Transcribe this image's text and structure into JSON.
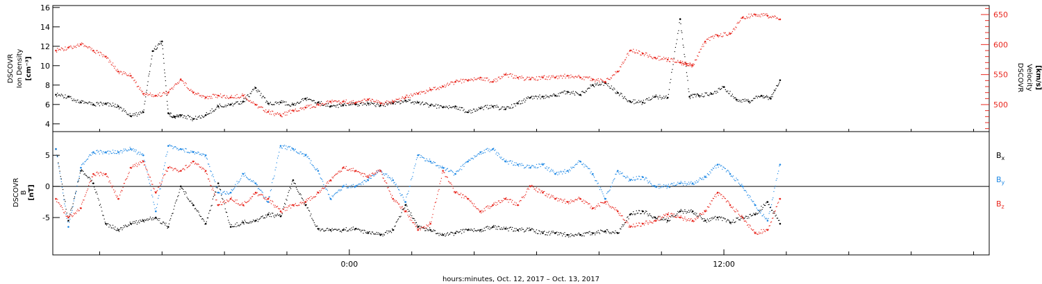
{
  "chart_data": [
    {
      "type": "scatter",
      "panel": "top",
      "ylabel_left": [
        "DSCOVR",
        "Ion Density",
        "[cm⁻³]"
      ],
      "ylabel_right": [
        "DSCOVR",
        "Velocity",
        "[km/s]"
      ],
      "ylim_left": [
        3.2,
        16.2
      ],
      "ylim_right": [
        455,
        665
      ],
      "yticks_left": [
        4,
        6,
        8,
        10,
        12,
        14,
        16
      ],
      "yticks_right": [
        500,
        550,
        600,
        650
      ],
      "x_unit": "hours relative to 00:00 Oct. 12, 2017",
      "xlim": [
        -9.5,
        20.5
      ],
      "series": [
        {
          "axis": "left",
          "color": "#000000",
          "x": [
            -9.4,
            -9,
            -8.6,
            -8.2,
            -7.8,
            -7.4,
            -7,
            -6.6,
            -6.3,
            -6,
            -5.8,
            -5.6,
            -5.4,
            -5,
            -4.6,
            -4.2,
            -3.8,
            -3.4,
            -3,
            -2.6,
            -2.2,
            -1.8,
            -1.4,
            -1,
            -0.6,
            -0.2,
            0.2,
            0.6,
            1,
            1.4,
            1.8,
            2.2,
            2.6,
            3,
            3.4,
            3.8,
            4.2,
            4.6,
            5,
            5.4,
            5.8,
            6.2,
            6.6,
            7,
            7.4,
            7.8,
            8.2,
            8.6,
            9,
            9.4,
            9.8,
            10.2,
            10.6,
            10.9,
            11.2,
            11.6,
            12,
            12.4,
            12.8,
            13.2,
            13.5,
            13.8
          ],
          "y": [
            7,
            6.8,
            6.2,
            6,
            6.1,
            5.8,
            4.8,
            5.2,
            11.5,
            12.5,
            5.1,
            4.7,
            4.9,
            4.5,
            4.9,
            5.8,
            6,
            6.3,
            7.7,
            6.1,
            6.2,
            6,
            6.6,
            6.2,
            5.8,
            5.9,
            6,
            6.1,
            5.9,
            6.1,
            6.4,
            6.2,
            5.9,
            5.7,
            5.8,
            5.2,
            5.6,
            5.8,
            5.5,
            6.1,
            6.7,
            6.8,
            6.9,
            7.3,
            7,
            8,
            8.2,
            7.2,
            6.3,
            6.2,
            6.8,
            6.7,
            14.8,
            6.8,
            6.9,
            7.1,
            7.8,
            6.5,
            6.3,
            6.9,
            6.6,
            8.5
          ]
        },
        {
          "axis": "right",
          "color": "#e8251c",
          "x": [
            -9.4,
            -9,
            -8.6,
            -8.2,
            -7.8,
            -7.4,
            -7,
            -6.6,
            -6.2,
            -5.8,
            -5.4,
            -5,
            -4.6,
            -4.2,
            -3.8,
            -3.4,
            -3,
            -2.6,
            -2.2,
            -1.8,
            -1.4,
            -1,
            -0.6,
            -0.2,
            0.2,
            0.6,
            1,
            1.4,
            1.8,
            2.2,
            2.6,
            3,
            3.4,
            3.8,
            4.2,
            4.6,
            5,
            5.4,
            5.8,
            6.2,
            6.6,
            7,
            7.4,
            7.8,
            8.2,
            8.6,
            9,
            9.4,
            9.8,
            10.2,
            10.6,
            10.8,
            11,
            11.4,
            11.8,
            12.2,
            12.6,
            13,
            13.4,
            13.8
          ],
          "y": [
            590,
            595,
            600,
            590,
            580,
            555,
            548,
            518,
            515,
            520,
            542,
            520,
            512,
            515,
            512,
            515,
            500,
            488,
            482,
            490,
            495,
            500,
            505,
            505,
            503,
            508,
            502,
            505,
            512,
            518,
            525,
            530,
            538,
            540,
            545,
            538,
            550,
            545,
            542,
            545,
            545,
            548,
            545,
            542,
            538,
            555,
            590,
            585,
            578,
            575,
            570,
            568,
            565,
            605,
            615,
            618,
            645,
            650,
            648,
            642
          ]
        }
      ]
    },
    {
      "type": "scatter",
      "panel": "bottom",
      "ylabel": [
        "DSCOVR",
        "B",
        "[nT]"
      ],
      "ylim": [
        -11,
        8.8
      ],
      "yticks": [
        -5,
        0,
        5
      ],
      "zero_line": true,
      "xlabel": "hours:minutes, Oct. 12, 2017 – Oct. 13, 2017",
      "xlim": [
        -9.5,
        20.5
      ],
      "xtick_labels": [
        {
          "at": 0,
          "label": "0:00"
        },
        {
          "at": 12,
          "label": "12:00"
        }
      ],
      "legend_placement": "right",
      "series": [
        {
          "name": "Bx",
          "label_main": "B",
          "label_sub": "x",
          "color": "#000000",
          "x": [
            -9.4,
            -9,
            -8.6,
            -8.2,
            -7.8,
            -7.4,
            -7,
            -6.6,
            -6.2,
            -5.8,
            -5.4,
            -5,
            -4.6,
            -4.2,
            -3.8,
            -3.4,
            -3,
            -2.6,
            -2.2,
            -1.8,
            -1.4,
            -1,
            -0.6,
            -0.2,
            0.2,
            0.6,
            1,
            1.4,
            1.8,
            2.2,
            2.6,
            3,
            3.4,
            3.8,
            4.2,
            4.6,
            5,
            5.4,
            5.8,
            6.2,
            6.6,
            7,
            7.4,
            7.8,
            8.2,
            8.6,
            9,
            9.4,
            9.8,
            10.2,
            10.6,
            11,
            11.4,
            11.8,
            12.2,
            12.6,
            13,
            13.4,
            13.8
          ],
          "y": [
            6,
            -5.5,
            2.5,
            0.5,
            -6,
            -7,
            -6,
            -5.5,
            -5,
            -6.5,
            0,
            -3,
            -6,
            0.5,
            -6.5,
            -5.8,
            -5.5,
            -4.5,
            -4.8,
            1,
            -3,
            -6.8,
            -7,
            -7,
            -6.8,
            -7.5,
            -7.8,
            -7,
            -3,
            -6.5,
            -7,
            -7.8,
            -7.5,
            -7,
            -7,
            -6.5,
            -6.8,
            -7,
            -7,
            -7.5,
            -7.5,
            -7.8,
            -7.8,
            -7.5,
            -7.2,
            -7.5,
            -4.5,
            -4,
            -5,
            -5.5,
            -4,
            -4,
            -5.5,
            -5,
            -5.8,
            -5,
            -4.5,
            -2.5,
            -6
          ]
        },
        {
          "name": "By",
          "label_main": "B",
          "label_sub": "y",
          "color": "#1e88e5",
          "x": [
            -9.4,
            -9,
            -8.6,
            -8.2,
            -7.8,
            -7.4,
            -7,
            -6.6,
            -6.2,
            -5.8,
            -5.4,
            -5,
            -4.6,
            -4.2,
            -3.8,
            -3.4,
            -3,
            -2.6,
            -2.2,
            -1.8,
            -1.4,
            -1,
            -0.6,
            -0.2,
            0.2,
            0.6,
            1,
            1.4,
            1.8,
            2.2,
            2.6,
            3,
            3.4,
            3.8,
            4.2,
            4.6,
            5,
            5.4,
            5.8,
            6.2,
            6.6,
            7,
            7.4,
            7.8,
            8.2,
            8.6,
            9,
            9.4,
            9.8,
            10.2,
            10.6,
            11,
            11.4,
            11.8,
            12.2,
            12.6,
            13,
            13.4,
            13.8
          ],
          "y": [
            6,
            -6.5,
            3,
            5.5,
            5.5,
            5.5,
            6,
            5,
            -4,
            6.5,
            6,
            5.5,
            5,
            -1,
            -1,
            2,
            0.5,
            -2.5,
            6.5,
            6,
            5,
            2.5,
            -2,
            0,
            0,
            1,
            2.5,
            1,
            -2.5,
            5,
            4,
            3,
            2,
            4,
            5.5,
            6,
            4,
            3.5,
            3,
            3.5,
            2,
            2.5,
            4,
            2,
            -2,
            2.5,
            1,
            1.5,
            0,
            0,
            0.5,
            0.5,
            1.5,
            3.5,
            2,
            0,
            -3,
            -5.5,
            3.5
          ]
        },
        {
          "name": "Bz",
          "label_main": "B",
          "label_sub": "z",
          "color": "#e8251c",
          "x": [
            -9.4,
            -9,
            -8.6,
            -8.2,
            -7.8,
            -7.4,
            -7,
            -6.6,
            -6.2,
            -5.8,
            -5.4,
            -5,
            -4.6,
            -4.2,
            -3.8,
            -3.4,
            -3,
            -2.6,
            -2.2,
            -1.8,
            -1.4,
            -1,
            -0.6,
            -0.2,
            0.2,
            0.6,
            1,
            1.4,
            1.8,
            2.2,
            2.6,
            3,
            3.4,
            3.8,
            4.2,
            4.6,
            5,
            5.4,
            5.8,
            6.2,
            6.6,
            7,
            7.4,
            7.8,
            8.2,
            8.6,
            9,
            9.4,
            9.8,
            10.2,
            10.6,
            11,
            11.4,
            11.8,
            12.2,
            12.6,
            13,
            13.4,
            13.8
          ],
          "y": [
            -2,
            -5,
            -3.5,
            2,
            2,
            -2,
            3,
            4,
            -1,
            3,
            2.5,
            4,
            2.5,
            -3,
            -2,
            -3,
            -1,
            -2,
            -4,
            -3,
            -2.5,
            -1,
            1,
            3,
            2.5,
            1.5,
            2.5,
            -2,
            -4,
            -7,
            -6,
            2.5,
            -1,
            -2,
            -4,
            -3,
            -2,
            -3,
            0,
            -1,
            -2,
            -2.5,
            -2,
            -3.5,
            -2.5,
            -4,
            -6.5,
            -6,
            -5.5,
            -4.5,
            -5,
            -5.5,
            -4,
            -1,
            -3,
            -5,
            -7.5,
            -7,
            -2
          ]
        }
      ]
    }
  ]
}
